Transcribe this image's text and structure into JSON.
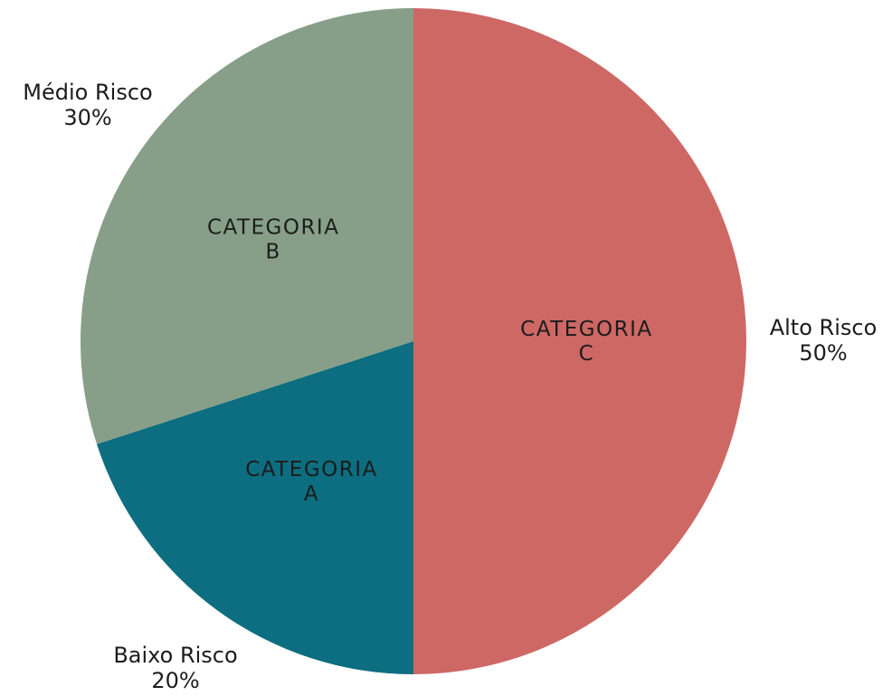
{
  "chart_data": {
    "type": "pie",
    "title": "",
    "slices": [
      {
        "category": "CATEGORIA C",
        "category_lines": [
          "CATEGORIA",
          "C"
        ],
        "label": "Alto Risco",
        "percent_label": "50%",
        "value": 50,
        "color": "#CD6865"
      },
      {
        "category": "CATEGORIA A",
        "category_lines": [
          "CATEGORIA",
          "A"
        ],
        "label": "Baixo Risco",
        "percent_label": "20%",
        "value": 20,
        "color": "#0C6E80"
      },
      {
        "category": "CATEGORIA B",
        "category_lines": [
          "CATEGORIA",
          "B"
        ],
        "label": "Médio Risco",
        "percent_label": "30%",
        "value": 30,
        "color": "#879F88"
      }
    ],
    "start": "12 o'clock",
    "direction": "clockwise",
    "legend": "none"
  }
}
